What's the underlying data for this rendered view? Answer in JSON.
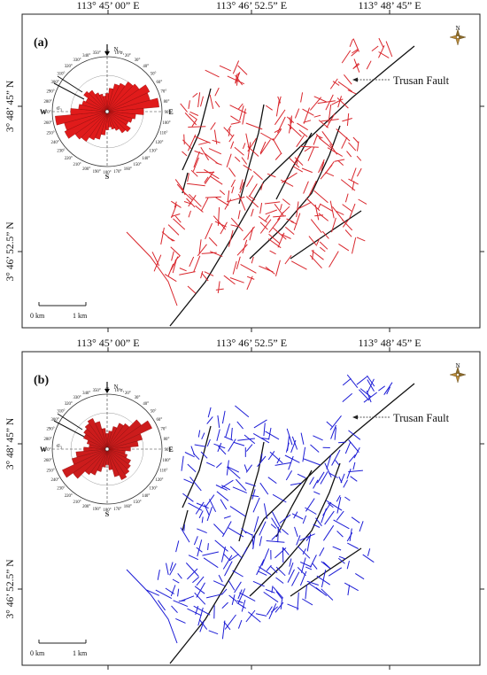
{
  "panels": [
    {
      "label": "(a)",
      "lineament_color": "#d9262c",
      "rose_color": "#e01b1b",
      "fault_label": "Trusan Fault",
      "compass_north": "N",
      "top_coords": [
        "113° 45’ 00” E",
        "113° 46’ 52.5” E",
        "113° 48’ 45” E"
      ],
      "bottom_coords": [],
      "left_coords": [
        "3° 48’ 45” N",
        "3° 46’ 52.5” N"
      ],
      "scale": {
        "start": "0 km",
        "end": "1 km"
      },
      "rose": {
        "north": "N",
        "south": "S",
        "east": "E",
        "west": "W",
        "sigma1": "σ₁",
        "sigma3": "σ₃",
        "angles": [
          "350°",
          "0°",
          "10°",
          "20°",
          "30°",
          "40°",
          "50°",
          "60°",
          "70°",
          "80°",
          "90°",
          "100°",
          "110°",
          "120°",
          "130°",
          "140°",
          "150°",
          "160°",
          "170°",
          "180°",
          "190°",
          "200°",
          "210°",
          "220°",
          "230°",
          "240°",
          "250°",
          "260°",
          "270°",
          "280°",
          "290°",
          "300°",
          "310°",
          "320°",
          "330°",
          "340°"
        ],
        "petals": [
          0.35,
          0.45,
          0.55,
          0.6,
          0.7,
          0.75,
          0.9,
          0.85,
          1.0,
          0.7,
          0.55,
          0.5,
          0.45,
          0.55,
          0.5,
          0.4,
          0.35,
          0.3,
          0.35,
          0.45,
          0.55,
          0.6,
          0.7,
          0.75,
          0.9,
          0.85,
          1.0,
          0.7,
          0.55,
          0.5,
          0.45,
          0.55,
          0.5,
          0.4,
          0.35,
          0.3
        ]
      }
    },
    {
      "label": "(b)",
      "lineament_color": "#1c1cd6",
      "rose_color": "#cc1c1c",
      "fault_label": "Trusan Fault",
      "compass_north": "N",
      "top_coords": [
        "113° 45’ 00” E",
        "113° 46’ 52.5” E",
        "113° 48’ 45” E"
      ],
      "bottom_coords": [],
      "left_coords": [
        "3° 48’ 45” N",
        "3° 46’ 52.5” N"
      ],
      "scale": {
        "start": "0 km",
        "end": "1 km"
      },
      "rose": {
        "north": "N",
        "south": "S",
        "east": "E",
        "west": "W",
        "sigma1": "σ₁",
        "sigma3": "σ₃",
        "angles": [
          "350°",
          "0°",
          "10°",
          "20°",
          "30°",
          "40°",
          "50°",
          "60°",
          "70°",
          "80°",
          "90°",
          "100°",
          "110°",
          "120°",
          "130°",
          "140°",
          "150°",
          "160°",
          "170°",
          "180°",
          "190°",
          "200°",
          "210°",
          "220°",
          "230°",
          "240°",
          "250°",
          "260°",
          "270°",
          "280°",
          "290°",
          "300°",
          "310°",
          "320°",
          "330°",
          "340°"
        ],
        "petals": [
          0.3,
          0.35,
          0.45,
          0.55,
          0.6,
          0.8,
          0.95,
          0.7,
          0.6,
          0.45,
          0.35,
          0.4,
          0.5,
          0.55,
          0.6,
          0.65,
          0.55,
          0.4,
          0.3,
          0.35,
          0.45,
          0.55,
          0.6,
          0.8,
          0.95,
          0.7,
          0.6,
          0.45,
          0.35,
          0.4,
          0.5,
          0.55,
          0.6,
          0.65,
          0.55,
          0.4
        ]
      }
    }
  ]
}
